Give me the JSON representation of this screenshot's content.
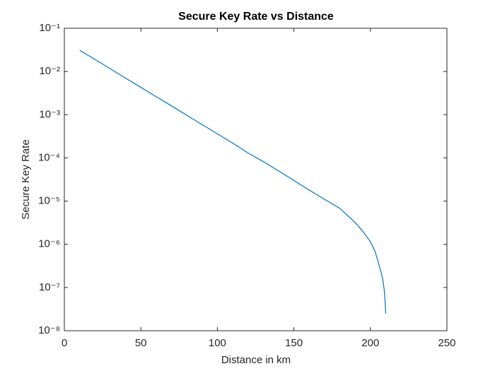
{
  "chart_data": {
    "type": "line",
    "title": "Secure Key Rate vs Distance",
    "x_label": "Distance in km",
    "y_label": "Secure Key Rate",
    "log_y": true,
    "grid": false,
    "xlim": [
      0,
      250
    ],
    "xticks": [
      0,
      50,
      100,
      150,
      200,
      250
    ],
    "ylim": [
      1e-08,
      0.1
    ],
    "yticks": [
      {
        "value": 1e-08,
        "label": "10⁻⁸"
      },
      {
        "value": 1e-07,
        "label": "10⁻⁷"
      },
      {
        "value": 1e-06,
        "label": "10⁻⁶"
      },
      {
        "value": 1e-05,
        "label": "10⁻⁵"
      },
      {
        "value": 0.0001,
        "label": "10⁻⁴"
      },
      {
        "value": 0.001,
        "label": "10⁻³"
      },
      {
        "value": 0.01,
        "label": "10⁻²"
      },
      {
        "value": 0.1,
        "label": "10⁻¹"
      }
    ],
    "series": [
      {
        "color": "#0072bd",
        "x": [
          10,
          20,
          30,
          40,
          50,
          60,
          70,
          80,
          90,
          100,
          110,
          120,
          130,
          140,
          150,
          160,
          170,
          180,
          190,
          195,
          200,
          203,
          205,
          207,
          208,
          209,
          209.5,
          210
        ],
        "values": [
          0.031,
          0.019,
          0.0116,
          0.007,
          0.0043,
          0.0026,
          0.0016,
          0.00097,
          0.00059,
          0.00036,
          0.00022,
          0.00013,
          8.2e-05,
          5e-05,
          3e-05,
          1.8e-05,
          1.1e-05,
          6.8e-06,
          3.2e-06,
          2e-06,
          1.15e-06,
          7e-07,
          4e-07,
          2.2e-07,
          1.6e-07,
          9e-08,
          5.5e-08,
          2.5e-08
        ]
      }
    ]
  }
}
